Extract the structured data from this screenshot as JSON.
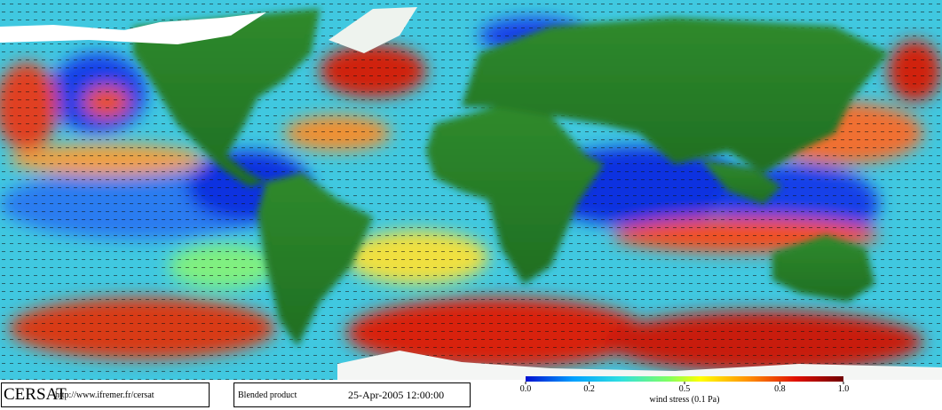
{
  "map": {
    "footer": {
      "logo": "CERSAT",
      "url": "http://www.ifremer.fr/cersat",
      "product": "Blended product",
      "date": "25-Apr-2005 12:00:00"
    },
    "colorbar": {
      "title": "wind stress (0.1 Pa)",
      "range": [
        0,
        1
      ],
      "ticks": [
        {
          "value": 0,
          "label": "0.0"
        },
        0.2,
        0.5,
        0.8,
        {
          "value": 1,
          "label": "1.0"
        }
      ]
    }
  }
}
